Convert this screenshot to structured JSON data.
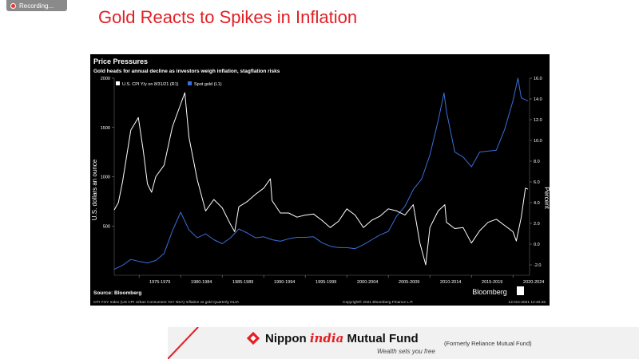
{
  "app": {
    "recording_label": "Recording..."
  },
  "slide": {
    "title": "Gold Reacts to Spikes in Inflation"
  },
  "chart_data": {
    "type": "line",
    "title": "Price Pressures",
    "subtitle": "Gold heads for annual decline as investors weigh inflation, stagflation risks",
    "legend": [
      {
        "label": "U.S. CPI Y/y on 8/31/21 (R1)",
        "color": "#ffffff"
      },
      {
        "label": "Spot gold (L1)",
        "color": "#3b6fd9"
      }
    ],
    "ylabel_left": "U.S. dollars an ounce",
    "ylabel_right": "Percent",
    "left_axis": {
      "min": 0,
      "max": 2000,
      "ticks": [
        "2000",
        "1500",
        "1000",
        "500"
      ]
    },
    "right_axis": {
      "min": -3,
      "max": 16,
      "ticks": [
        "16.0",
        "14.0",
        "12.0",
        "10.0",
        "8.0",
        "6.0",
        "4.0",
        "2.0",
        "0.0",
        "-2.0"
      ]
    },
    "x_range": [
      1972,
      2022
    ],
    "x_tick_labels": [
      "1975-1979",
      "1980-1984",
      "1985-1989",
      "1990-1994",
      "1995-1999",
      "2000-2004",
      "2005-2009",
      "2010-2014",
      "2015-2019",
      "2020-2024"
    ],
    "source": "Source: Bloomberg",
    "footnote": "CPI YOY Index (US CPI Urban Consumers YoY NSA) Inflation vs gold Quarterly 01JA",
    "copyright": "Copyright© 2021 Bloomberg Finance L.P.",
    "date_stamp": "13-Oct-2021 12:40:46",
    "brand": "Bloomberg",
    "series": [
      {
        "name": "Spot gold (L1)",
        "axis": "left",
        "color": "#3b6fd9",
        "x": [
          1972,
          1973,
          1974,
          1975,
          1976,
          1977,
          1978,
          1979,
          1980,
          1981,
          1982,
          1983,
          1984,
          1985,
          1986,
          1987,
          1988,
          1989,
          1990,
          1991,
          1992,
          1993,
          1994,
          1995,
          1996,
          1997,
          1998,
          1999,
          2000,
          2001,
          2002,
          2003,
          2004,
          2005,
          2006,
          2007,
          2008,
          2009,
          2010,
          2011,
          2011.7,
          2012,
          2013,
          2014,
          2015,
          2016,
          2017,
          2018,
          2019,
          2020,
          2020.6,
          2021,
          2021.8
        ],
        "y": [
          60,
          100,
          160,
          140,
          125,
          150,
          220,
          450,
          640,
          460,
          380,
          420,
          360,
          320,
          380,
          470,
          430,
          380,
          390,
          360,
          345,
          370,
          385,
          385,
          390,
          330,
          295,
          280,
          280,
          270,
          310,
          360,
          410,
          445,
          600,
          700,
          870,
          975,
          1220,
          1570,
          1850,
          1660,
          1250,
          1200,
          1100,
          1250,
          1260,
          1270,
          1480,
          1770,
          2000,
          1800,
          1770
        ]
      },
      {
        "name": "U.S. CPI Y/y on 8/31/21 (R1)",
        "axis": "right",
        "color": "#ffffff",
        "x": [
          1972,
          1972.5,
          1973,
          1974,
          1974.9,
          1975.5,
          1976,
          1976.5,
          1977,
          1978,
          1979,
          1980,
          1980.5,
          1981,
          1982,
          1983,
          1984,
          1985,
          1986,
          1986.5,
          1987,
          1988,
          1989,
          1990,
          1990.8,
          1991,
          1992,
          1993,
          1994,
          1995,
          1996,
          1997,
          1998,
          1999,
          2000,
          2001,
          2002,
          2003,
          2004,
          2005,
          2006,
          2007,
          2008,
          2008.8,
          2009.5,
          2010,
          2011,
          2011.8,
          2012,
          2013,
          2014,
          2015,
          2016,
          2017,
          2018,
          2019,
          2020,
          2020.4,
          2021,
          2021.5,
          2021.8
        ],
        "y": [
          3.3,
          4.0,
          6.0,
          11.0,
          12.2,
          9.0,
          5.8,
          5.0,
          6.5,
          7.6,
          11.3,
          13.5,
          14.6,
          10.3,
          6.2,
          3.2,
          4.3,
          3.5,
          1.9,
          1.2,
          3.6,
          4.1,
          4.8,
          5.4,
          6.3,
          4.2,
          3.0,
          3.0,
          2.6,
          2.8,
          2.9,
          2.3,
          1.6,
          2.2,
          3.4,
          2.8,
          1.6,
          2.3,
          2.7,
          3.4,
          3.2,
          2.8,
          3.8,
          0.1,
          -2.0,
          1.6,
          3.2,
          3.8,
          2.1,
          1.5,
          1.6,
          0.1,
          1.3,
          2.1,
          2.4,
          1.8,
          1.2,
          0.3,
          2.6,
          5.4,
          5.3
        ]
      }
    ]
  },
  "footer": {
    "brand_prefix": "Nippon ",
    "brand_highlight": "india",
    "brand_suffix": " Mutual Fund",
    "tagline": "Wealth sets you free",
    "formerly": "(Formerly Reliance Mutual Fund)"
  }
}
